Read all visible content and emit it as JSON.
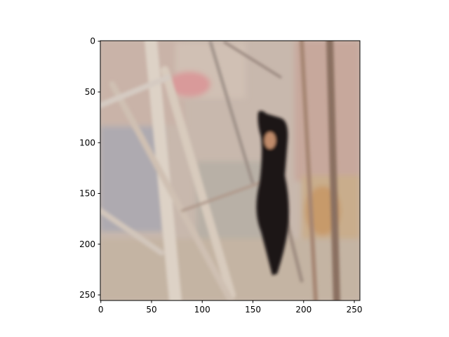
{
  "chart_data": {
    "type": "image",
    "xlim": [
      -0.5,
      255.5
    ],
    "ylim": [
      255.5,
      -0.5
    ],
    "xticks": [
      0,
      50,
      100,
      150,
      200,
      250
    ],
    "yticks": [
      0,
      50,
      100,
      150,
      200,
      250
    ]
  }
}
